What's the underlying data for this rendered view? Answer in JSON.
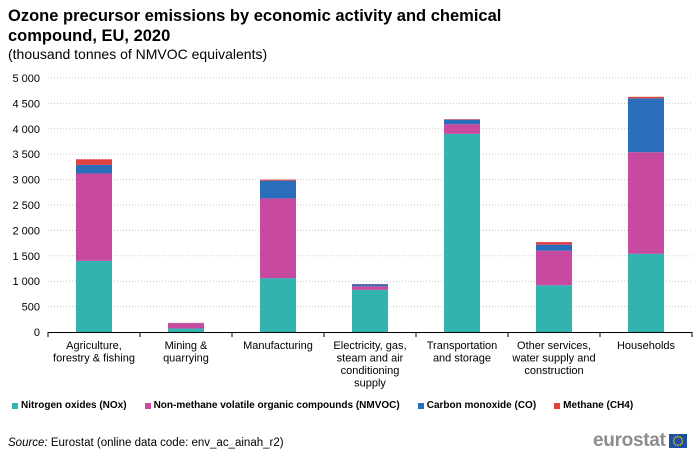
{
  "header": {
    "title": "Ozone precursor emissions by economic activity and chemical compound, EU, 2020",
    "subtitle": "(thousand tonnes of NMVOC equivalents)"
  },
  "chart_data": {
    "type": "bar",
    "stacked": true,
    "categories": [
      [
        "Agriculture,",
        "forestry & fishing"
      ],
      [
        "Mining &",
        "quarrying"
      ],
      [
        "Manufacturing"
      ],
      [
        "Electricity, gas,",
        "steam and air",
        "conditioning",
        "supply"
      ],
      [
        "Transportation",
        "and storage"
      ],
      [
        "Other services,",
        "water supply and",
        "construction"
      ],
      [
        "Households"
      ]
    ],
    "series": [
      {
        "name": "Nitrogen oxides (NOx)",
        "color": "#32b3b0",
        "values": [
          1400,
          70,
          1060,
          830,
          3900,
          920,
          1540
        ]
      },
      {
        "name": "Non-methane volatile organic compounds (NMVOC)",
        "color": "#c84aa0",
        "values": [
          1720,
          100,
          1570,
          70,
          190,
          680,
          2000
        ]
      },
      {
        "name": "Carbon monoxide (CO)",
        "color": "#2a6ebb",
        "values": [
          170,
          5,
          350,
          40,
          90,
          120,
          1060
        ]
      },
      {
        "name": "Methane (CH4)",
        "color": "#e04040",
        "values": [
          110,
          5,
          20,
          5,
          10,
          50,
          30
        ]
      }
    ],
    "ylim": [
      0,
      5000
    ],
    "yticks": [
      0,
      500,
      1000,
      1500,
      2000,
      2500,
      3000,
      3500,
      4000,
      4500,
      5000
    ],
    "ytick_labels": [
      "0",
      "500",
      "1 000",
      "1 500",
      "2 000",
      "2 500",
      "3 000",
      "3 500",
      "4 000",
      "4 500",
      "5 000"
    ],
    "grid": true,
    "legend_position": "bottom"
  },
  "footer": {
    "source_label": "Source:",
    "source_text": "Eurostat (online data code: env_ac_ainah_r2)",
    "logo_text": "eurostat"
  }
}
